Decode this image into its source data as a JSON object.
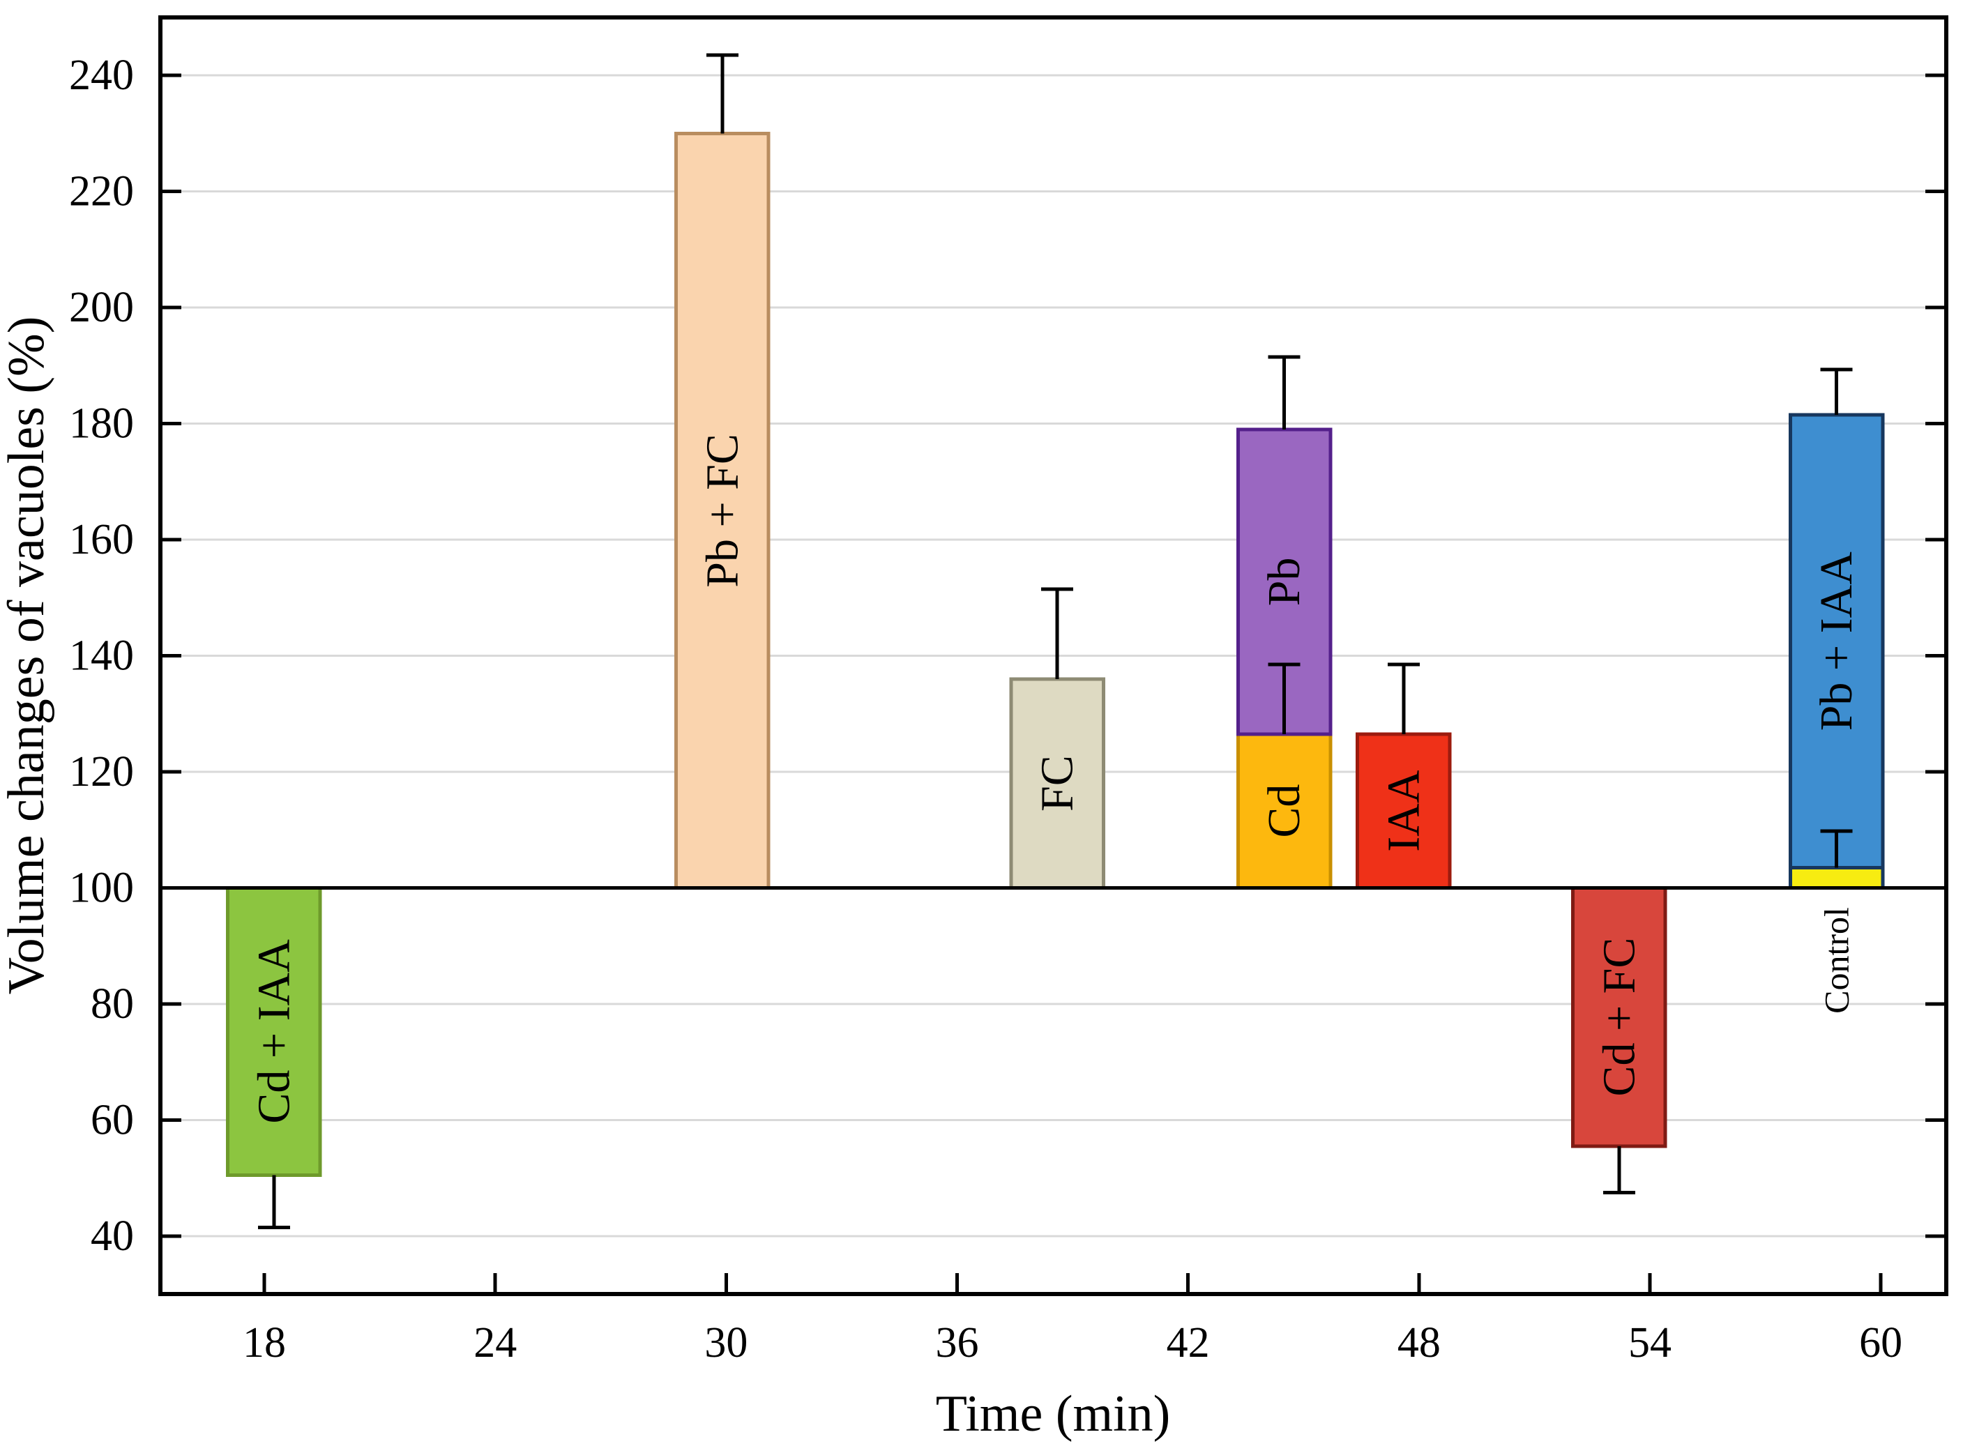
{
  "chart_data": {
    "type": "bar",
    "title": "",
    "xlabel": "Time (min)",
    "ylabel": "Volume changes of vacuoles (%)",
    "xlim": [
      15.3,
      61.7
    ],
    "ylim": [
      30,
      250
    ],
    "x_ticks": [
      18,
      24,
      30,
      36,
      42,
      48,
      54,
      60
    ],
    "y_ticks": [
      40,
      60,
      80,
      100,
      120,
      140,
      160,
      180,
      200,
      220,
      240
    ],
    "baseline": 100,
    "grid": "horizontal",
    "gridline_color": "#D9D9D9",
    "frame_color": "#000000",
    "background_color": "#FFFFFF",
    "bar_width_x_units": 2.4,
    "bars": [
      {
        "label": "Cd + IAA",
        "x": 18.25,
        "base": 100,
        "top": 50.5,
        "error_to": 41.5,
        "fill": "#8CC540",
        "stroke": "#6E9A2B",
        "label_inside": true
      },
      {
        "label": "Pb + FC",
        "x": 29.9,
        "base": 100,
        "top": 230,
        "error_to": 243.5,
        "fill": "#FAD4AE",
        "stroke": "#B98D5F",
        "label_inside": true
      },
      {
        "label": "FC",
        "x": 38.6,
        "base": 100,
        "top": 136,
        "error_to": 151.5,
        "fill": "#DEDAC2",
        "stroke": "#8E8B74",
        "label_inside": true
      },
      {
        "label": "Cd",
        "x": 44.5,
        "base": 100,
        "top": 126.5,
        "error_to": 138.5,
        "fill": "#FDB80E",
        "stroke": "#C98F00",
        "label_inside": true
      },
      {
        "label": "Pb",
        "x": 44.5,
        "base": 126.5,
        "top": 179,
        "error_to": 191.5,
        "fill": "#9A67C1",
        "stroke": "#54208B",
        "label_inside": true
      },
      {
        "label": "IAA",
        "x": 47.6,
        "base": 100,
        "top": 126.5,
        "error_to": 138.5,
        "fill": "#EF3118",
        "stroke": "#9C1B0E",
        "label_inside": true
      },
      {
        "label": "Cd + FC",
        "x": 53.2,
        "base": 100,
        "top": 55.5,
        "error_to": 47.5,
        "fill": "#D8463C",
        "stroke": "#7F1B14",
        "label_inside": true
      },
      {
        "label": "Control",
        "x": 58.85,
        "base": 100,
        "top": 103.5,
        "error_to": 109.8,
        "fill": "#F7EC11",
        "stroke": "#17375E",
        "label_inside": false,
        "label_at_value": 87.5
      },
      {
        "label": "Pb + IAA",
        "x": 58.85,
        "base": 103.5,
        "top": 181.5,
        "error_to": 189.3,
        "fill": "#3E8ED0",
        "stroke": "#17375E",
        "label_inside": true
      }
    ]
  }
}
